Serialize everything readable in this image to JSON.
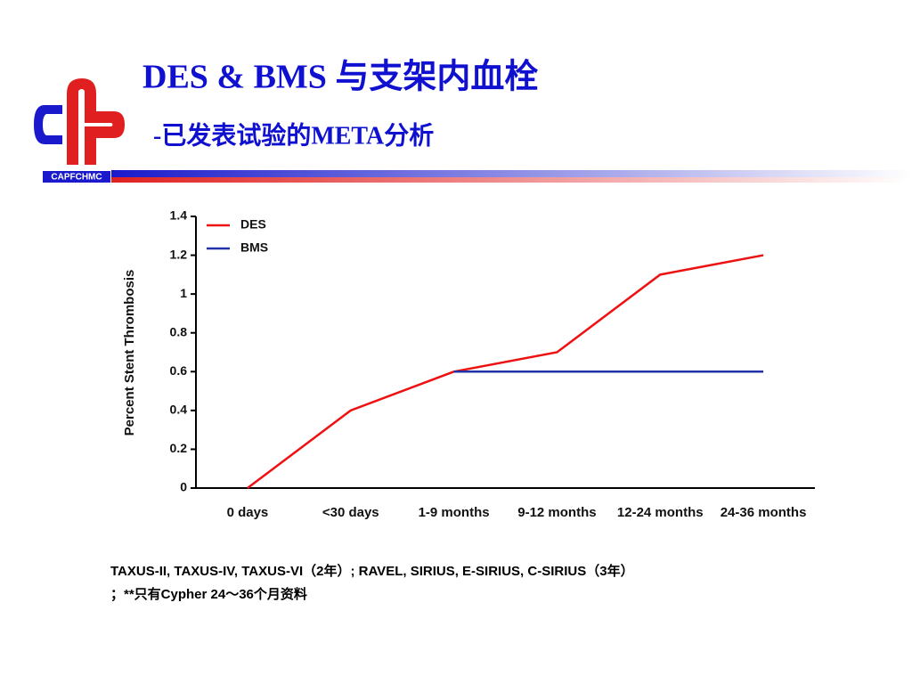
{
  "slide": {
    "title": "DES & BMS 与支架内血栓",
    "subtitle": "-已发表试验的META分析",
    "logo_text": "CAPFCHMC",
    "footnote": [
      "TAXUS-II, TAXUS-IV, TAXUS-VI（2年）; RAVEL, SIRIUS, E-SIRIUS, C-SIRIUS（3年）",
      "；**只有Cypher 24～36个月资料"
    ]
  },
  "chart_data": {
    "type": "line",
    "y_label": "Percent Stent Thrombosis",
    "categories": [
      "0 days",
      "<30 days",
      "1-9 months",
      "9-12 months",
      "12-24 months",
      "24-36 months"
    ],
    "series": [
      {
        "name": "DES",
        "color": "#ee1111",
        "values": [
          0,
          0.4,
          0.6,
          0.7,
          1.1,
          1.2
        ]
      },
      {
        "name": "BMS",
        "color": "#2233aa",
        "values": [
          null,
          null,
          0.6,
          0.6,
          0.6,
          0.6
        ]
      }
    ],
    "ylim": [
      0,
      1.4
    ],
    "yticks": [
      0,
      0.2,
      0.4,
      0.6,
      0.8,
      1,
      1.2,
      1.4
    ],
    "legend": "top-left"
  }
}
